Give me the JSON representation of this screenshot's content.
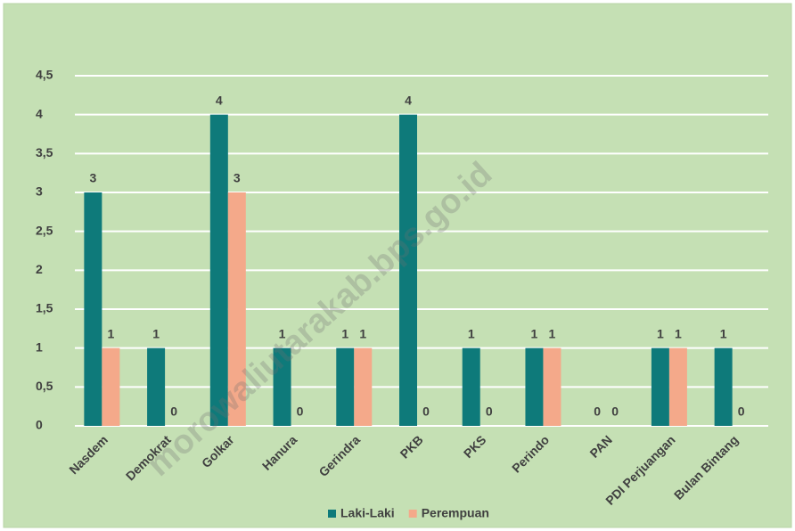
{
  "chart_data": {
    "type": "bar",
    "categories": [
      "Nasdem",
      "Demokrat",
      "Golkar",
      "Hanura",
      "Gerindra",
      "PKB",
      "PKS",
      "Perindo",
      "PAN",
      "PDI Perjuangan",
      "Bulan Bintang"
    ],
    "series": [
      {
        "name": "Laki-Laki",
        "color": "#0e7a7a",
        "values": [
          3,
          1,
          4,
          1,
          1,
          4,
          1,
          1,
          0,
          1,
          1
        ]
      },
      {
        "name": "Perempuan",
        "color": "#f4a98a",
        "values": [
          1,
          0,
          3,
          0,
          1,
          0,
          0,
          1,
          0,
          1,
          0
        ]
      }
    ],
    "ylim": [
      0,
      4.5
    ],
    "yticks": [
      0,
      {
        "value": 0.5,
        "label": "0,5"
      },
      1,
      {
        "value": 1.5,
        "label": "1,5"
      },
      2,
      {
        "value": 2.5,
        "label": "2,5"
      },
      3,
      {
        "value": 3.5,
        "label": "3,5"
      },
      4,
      {
        "value": 4.5,
        "label": "4,5"
      }
    ],
    "grid": true,
    "legend": "bottom",
    "watermark": "morowaliutarakab.bps.go.id"
  }
}
